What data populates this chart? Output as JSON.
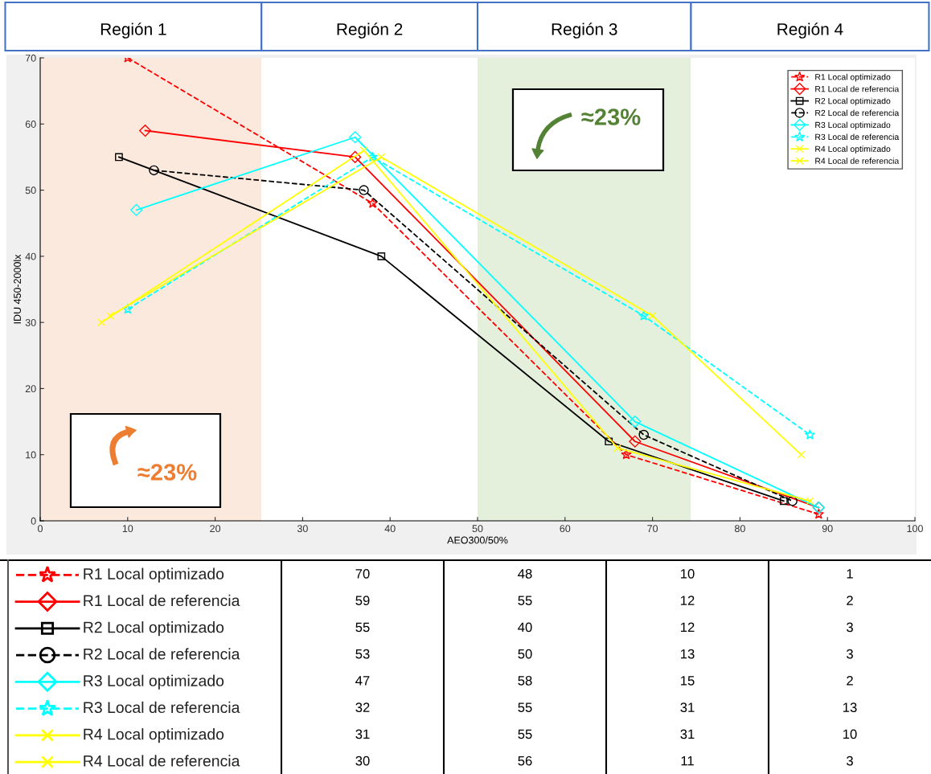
{
  "chart_data": [
    {
      "type": "line",
      "xlabel": "AEO300/50%",
      "ylabel": "IDU 450-2000lx",
      "xlim": [
        0,
        100
      ],
      "xticks": [
        0,
        10,
        20,
        30,
        40,
        50,
        60,
        70,
        80,
        90,
        100
      ],
      "ylim": [
        0,
        70
      ],
      "yticks": [
        0,
        10,
        20,
        30,
        40,
        50,
        60,
        70
      ],
      "legend": "top right",
      "series": [
        {
          "name": "R1 Local optimizado",
          "color": "#ff0000",
          "marker": "star",
          "line_style": "dashed",
          "x": [
            10,
            38,
            67,
            89
          ],
          "values": [
            70,
            48,
            10,
            1
          ]
        },
        {
          "name": "R1 Local de referencia",
          "color": "#ff0000",
          "marker": "diamond",
          "line_style": "solid",
          "x": [
            12,
            36,
            68,
            89
          ],
          "values": [
            59,
            55,
            12,
            2
          ]
        },
        {
          "name": "R2 Local optimizado",
          "color": "#000000",
          "marker": "square",
          "line_style": "solid",
          "x": [
            9,
            39,
            65,
            85
          ],
          "values": [
            55,
            40,
            12,
            3
          ]
        },
        {
          "name": "R2 Local de referencia",
          "color": "#000000",
          "marker": "circle",
          "line_style": "dashed",
          "x": [
            13,
            37,
            69,
            86
          ],
          "values": [
            53,
            50,
            13,
            3
          ]
        },
        {
          "name": "R3 Local optimizado",
          "color": "#00ffff",
          "marker": "diamond",
          "line_style": "solid",
          "x": [
            11,
            36,
            68,
            89
          ],
          "values": [
            47,
            58,
            15,
            2
          ]
        },
        {
          "name": "R3 Local de referencia",
          "color": "#00ffff",
          "marker": "star",
          "line_style": "dashed",
          "x": [
            10,
            38,
            69,
            88
          ],
          "values": [
            32,
            55,
            31,
            13
          ]
        },
        {
          "name": "R4 Local optimizado",
          "color": "#ffff00",
          "marker": "cross",
          "line_style": "solid",
          "x": [
            8,
            39,
            70,
            87
          ],
          "values": [
            31,
            55,
            31,
            10
          ]
        },
        {
          "name": "R4 Local de referencia",
          "color": "#ffff00",
          "marker": "cross",
          "line_style": "solid",
          "x": [
            7,
            37,
            66,
            88
          ],
          "values": [
            30,
            56,
            11,
            3
          ]
        }
      ],
      "bands": [
        {
          "axis": "x",
          "from": 0,
          "to": 25.3,
          "label": "Región 1",
          "color": "#fbe9dd"
        },
        {
          "axis": "x",
          "from": 25.3,
          "to": 50,
          "label": "Región 2",
          "color": "#ffffff"
        },
        {
          "axis": "x",
          "from": 50,
          "to": 74.4,
          "label": "Región 3",
          "color": "#e5f0dc"
        },
        {
          "axis": "x",
          "from": 74.4,
          "to": 100,
          "label": "Región 4",
          "color": "#ffffff"
        }
      ],
      "annotations": [
        "≈23%",
        "≈23%"
      ]
    },
    {
      "type": "heatmap",
      "categories": [
        null,
        null,
        null,
        null
      ],
      "data_labels": true,
      "y_categories": [
        "R1 Local optimizado",
        "R1 Local de referencia",
        "R2 Local optimizado",
        "R2 Local de referencia",
        "R3 Local optimizado",
        "R3 Local de referencia",
        "R4 Local optimizado",
        "R4 Local de referencia"
      ],
      "cells": [
        [
          70,
          48,
          10,
          1
        ],
        [
          59,
          55,
          12,
          2
        ],
        [
          55,
          40,
          12,
          3
        ],
        [
          53,
          50,
          13,
          3
        ],
        [
          47,
          58,
          15,
          2
        ],
        [
          32,
          55,
          31,
          13
        ],
        [
          31,
          55,
          31,
          10
        ],
        [
          30,
          56,
          11,
          3
        ]
      ]
    }
  ]
}
